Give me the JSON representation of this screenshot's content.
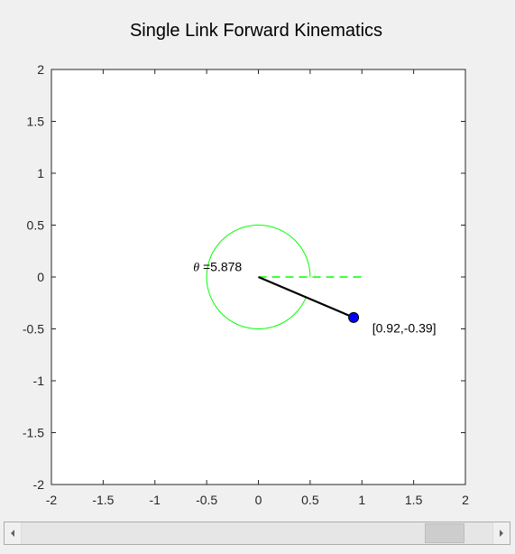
{
  "figure": {
    "background": "#f0f0f0",
    "axes_background": "#ffffff"
  },
  "chart_data": {
    "type": "line",
    "title": "Single Link Forward Kinematics",
    "xlabel": "",
    "ylabel": "",
    "xlim": [
      -2,
      2
    ],
    "ylim": [
      -2,
      2
    ],
    "grid": false,
    "x_ticks": [
      -2,
      -1.5,
      -1,
      -0.5,
      0,
      0.5,
      1,
      1.5,
      2
    ],
    "y_ticks": [
      -2,
      -1.5,
      -1,
      -0.5,
      0,
      0.5,
      1,
      1.5,
      2
    ],
    "x_tick_labels": [
      "-2",
      "-1.5",
      "-1",
      "-0.5",
      "0",
      "0.5",
      "1",
      "1.5",
      "2"
    ],
    "y_tick_labels": [
      "-2",
      "-1.5",
      "-1",
      "-0.5",
      "0",
      "0.5",
      "1",
      "1.5",
      "2"
    ],
    "series": [
      {
        "kind": "link",
        "x": [
          0,
          0.92
        ],
        "y": [
          0,
          -0.39
        ],
        "color": "#000000"
      },
      {
        "kind": "reference-line",
        "style": "dashed",
        "x": [
          0,
          1
        ],
        "y": [
          0,
          0
        ],
        "color": "#00ff00"
      },
      {
        "kind": "angle-arc",
        "radius": 0.5,
        "start_angle": 0,
        "end_angle": 5.878,
        "color": "#00ff00"
      },
      {
        "kind": "end-effector",
        "x": [
          0.92
        ],
        "y": [
          -0.39
        ],
        "color": "#0000ff"
      }
    ],
    "annotations": {
      "theta_symbol": "θ",
      "theta_text": " =5.878",
      "theta_x": -0.63,
      "theta_y": 0.1,
      "endpoint_text": "[0.92,-0.39]",
      "endpoint_x": 1.1,
      "endpoint_y": -0.49
    }
  },
  "slider": {
    "value": 0.935,
    "left_icon": "chevron-left-icon",
    "right_icon": "chevron-right-icon"
  }
}
